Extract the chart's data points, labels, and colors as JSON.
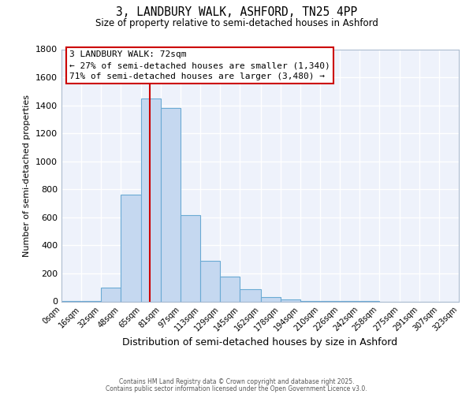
{
  "title1": "3, LANDBURY WALK, ASHFORD, TN25 4PP",
  "title2": "Size of property relative to semi-detached houses in Ashford",
  "xlabel": "Distribution of semi-detached houses by size in Ashford",
  "ylabel": "Number of semi-detached properties",
  "bin_edges": [
    0,
    16,
    32,
    48,
    65,
    81,
    97,
    113,
    129,
    145,
    162,
    178,
    194,
    210,
    226,
    242,
    258,
    275,
    291,
    307,
    323
  ],
  "bar_heights": [
    5,
    5,
    100,
    760,
    1450,
    1380,
    615,
    290,
    175,
    85,
    30,
    15,
    5,
    2,
    1,
    1,
    0,
    0,
    0,
    0
  ],
  "bar_color": "#c5d8f0",
  "bar_edge_color": "#6aaad4",
  "property_size": 72,
  "property_label": "3 LANDBURY WALK: 72sqm",
  "pct_smaller": "27%",
  "num_smaller": "1,340",
  "pct_larger": "71%",
  "num_larger": "3,480",
  "vline_color": "#cc0000",
  "annotation_box_color": "#cc0000",
  "ylim": [
    0,
    1800
  ],
  "yticks": [
    0,
    200,
    400,
    600,
    800,
    1000,
    1200,
    1400,
    1600,
    1800
  ],
  "background_color": "#eef2fb",
  "grid_color": "#ffffff",
  "footnote1": "Contains HM Land Registry data © Crown copyright and database right 2025.",
  "footnote2": "Contains public sector information licensed under the Open Government Licence v3.0."
}
